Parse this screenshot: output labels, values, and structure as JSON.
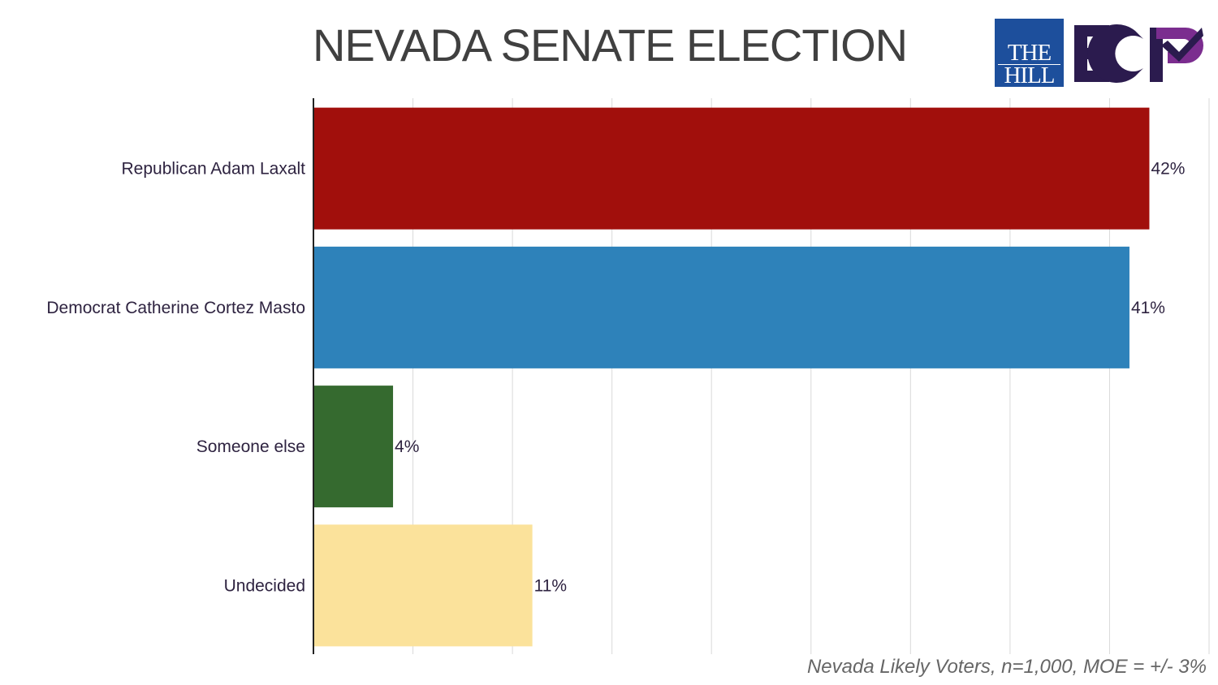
{
  "header": {
    "title": "NEVADA SENATE ELECTION",
    "logo_hill_line1": "THE",
    "logo_hill_line2": "HILL",
    "logo_ecp": "ECP"
  },
  "footnote": "Nevada Likely Voters, n=1,000, MOE = +/- 3%",
  "colors": {
    "republican": "#a10f0c",
    "democrat": "#2e82ba",
    "someone_else": "#356a2f",
    "undecided": "#fbe29b",
    "hill_logo": "#1d4f9c",
    "ecp_dark": "#2b1b4e",
    "ecp_purple": "#7b2d8f"
  },
  "chart_data": {
    "type": "bar",
    "orientation": "horizontal",
    "title": "NEVADA SENATE ELECTION",
    "categories": [
      "Republican Adam Laxalt",
      "Democrat Catherine Cortez Masto",
      "Someone else",
      "Undecided"
    ],
    "values": [
      42,
      41,
      4,
      11
    ],
    "value_labels": [
      "42%",
      "41%",
      "4%",
      "11%"
    ],
    "bar_colors": [
      "#a10f0c",
      "#2e82ba",
      "#356a2f",
      "#fbe29b"
    ],
    "xlim": [
      0,
      45
    ],
    "grid": true,
    "xlabel": "",
    "ylabel": ""
  }
}
